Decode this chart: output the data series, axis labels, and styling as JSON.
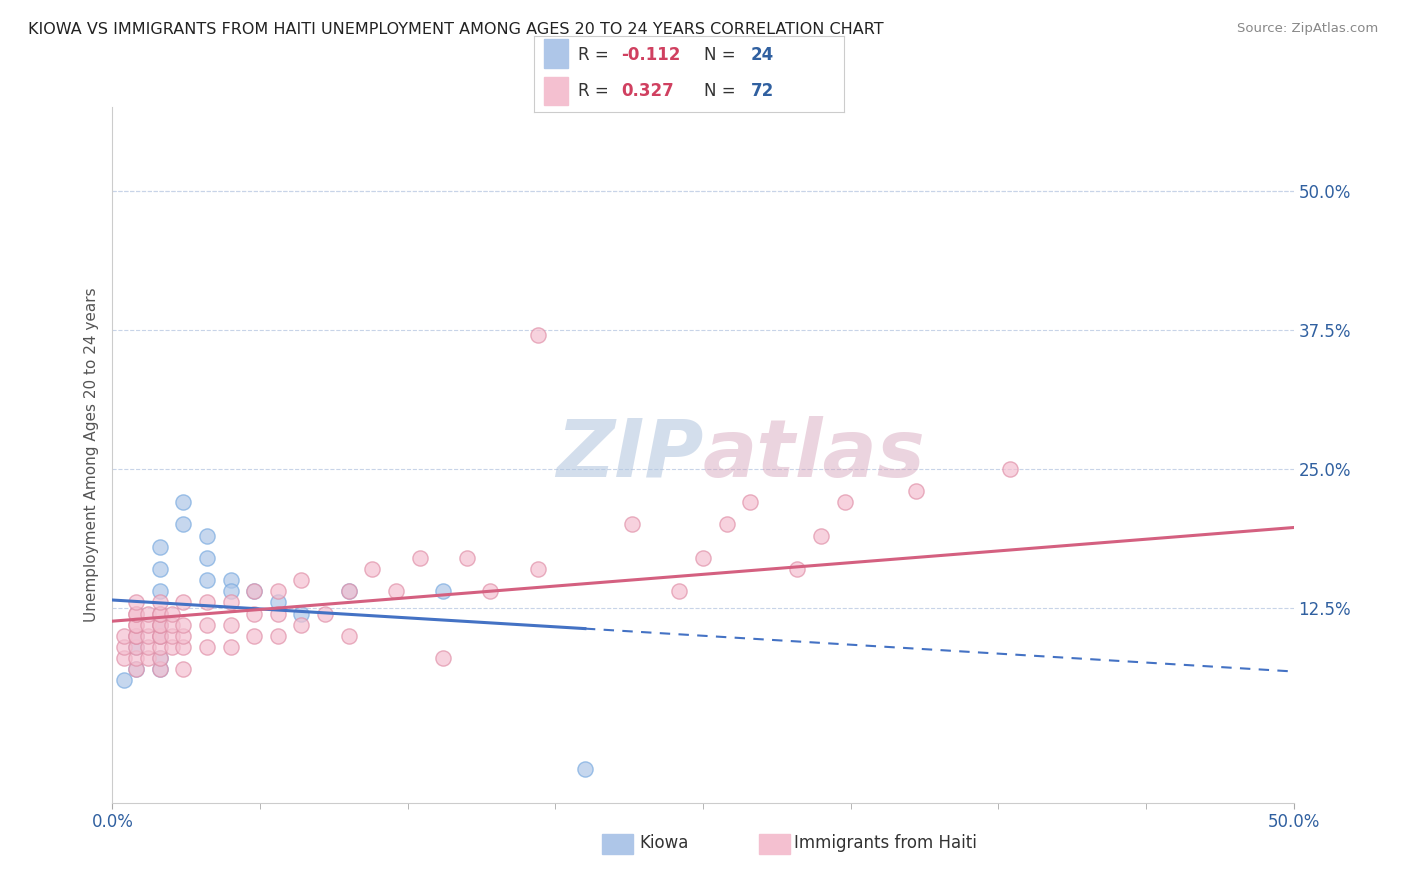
{
  "title": "KIOWA VS IMMIGRANTS FROM HAITI UNEMPLOYMENT AMONG AGES 20 TO 24 YEARS CORRELATION CHART",
  "source": "Source: ZipAtlas.com",
  "ylabel": "Unemployment Among Ages 20 to 24 years",
  "xlim": [
    0.0,
    0.5
  ],
  "ylim": [
    -0.05,
    0.575
  ],
  "x_tick_vals": [
    0.0,
    0.5
  ],
  "x_tick_labels": [
    "0.0%",
    "50.0%"
  ],
  "y_ticks_right": [
    0.125,
    0.25,
    0.375,
    0.5
  ],
  "y_tick_labels_right": [
    "12.5%",
    "25.0%",
    "37.5%",
    "50.0%"
  ],
  "watermark": "ZIPatlas",
  "watermark_color_zip": "#b0c8e8",
  "watermark_color_atlas": "#c8a0b8",
  "kiowa_color": "#aec6e8",
  "kiowa_edge": "#7aabe0",
  "haiti_color": "#f4c0d0",
  "haiti_edge": "#e090a8",
  "trend_kiowa_color": "#4472c4",
  "trend_haiti_color": "#d46080",
  "background_color": "#ffffff",
  "grid_color": "#c8d4e8",
  "legend_box_color": "#f0f0f0",
  "legend_border_color": "#cccccc",
  "text_color_dark": "#444444",
  "text_color_blue": "#3060a0",
  "text_color_pink": "#d04060",
  "source_color": "#888888",
  "kiowa_x": [
    0.005,
    0.01,
    0.01,
    0.01,
    0.02,
    0.02,
    0.02,
    0.02,
    0.02,
    0.02,
    0.02,
    0.03,
    0.03,
    0.04,
    0.04,
    0.04,
    0.05,
    0.05,
    0.06,
    0.07,
    0.08,
    0.1,
    0.14,
    0.2
  ],
  "kiowa_y": [
    0.06,
    0.07,
    0.09,
    0.1,
    0.07,
    0.08,
    0.1,
    0.11,
    0.14,
    0.16,
    0.18,
    0.2,
    0.22,
    0.15,
    0.17,
    0.19,
    0.15,
    0.14,
    0.14,
    0.13,
    0.12,
    0.14,
    0.14,
    -0.02
  ],
  "haiti_x": [
    0.005,
    0.005,
    0.005,
    0.01,
    0.01,
    0.01,
    0.01,
    0.01,
    0.01,
    0.01,
    0.01,
    0.01,
    0.01,
    0.015,
    0.015,
    0.015,
    0.015,
    0.015,
    0.02,
    0.02,
    0.02,
    0.02,
    0.02,
    0.02,
    0.02,
    0.02,
    0.02,
    0.02,
    0.025,
    0.025,
    0.025,
    0.025,
    0.03,
    0.03,
    0.03,
    0.03,
    0.03,
    0.04,
    0.04,
    0.04,
    0.05,
    0.05,
    0.05,
    0.06,
    0.06,
    0.06,
    0.07,
    0.07,
    0.07,
    0.08,
    0.08,
    0.09,
    0.1,
    0.1,
    0.11,
    0.12,
    0.13,
    0.14,
    0.15,
    0.16,
    0.18,
    0.18,
    0.22,
    0.24,
    0.25,
    0.26,
    0.27,
    0.29,
    0.3,
    0.31,
    0.34,
    0.38
  ],
  "haiti_y": [
    0.08,
    0.09,
    0.1,
    0.07,
    0.08,
    0.09,
    0.1,
    0.1,
    0.11,
    0.11,
    0.12,
    0.12,
    0.13,
    0.08,
    0.09,
    0.1,
    0.11,
    0.12,
    0.07,
    0.08,
    0.09,
    0.1,
    0.1,
    0.11,
    0.11,
    0.12,
    0.12,
    0.13,
    0.09,
    0.1,
    0.11,
    0.12,
    0.07,
    0.09,
    0.1,
    0.11,
    0.13,
    0.09,
    0.11,
    0.13,
    0.09,
    0.11,
    0.13,
    0.1,
    0.12,
    0.14,
    0.1,
    0.12,
    0.14,
    0.11,
    0.15,
    0.12,
    0.1,
    0.14,
    0.16,
    0.14,
    0.17,
    0.08,
    0.17,
    0.14,
    0.37,
    0.16,
    0.2,
    0.14,
    0.17,
    0.2,
    0.22,
    0.16,
    0.19,
    0.22,
    0.23,
    0.25
  ],
  "kiowa_R": -0.112,
  "kiowa_N": 24,
  "haiti_R": 0.327,
  "haiti_N": 72
}
